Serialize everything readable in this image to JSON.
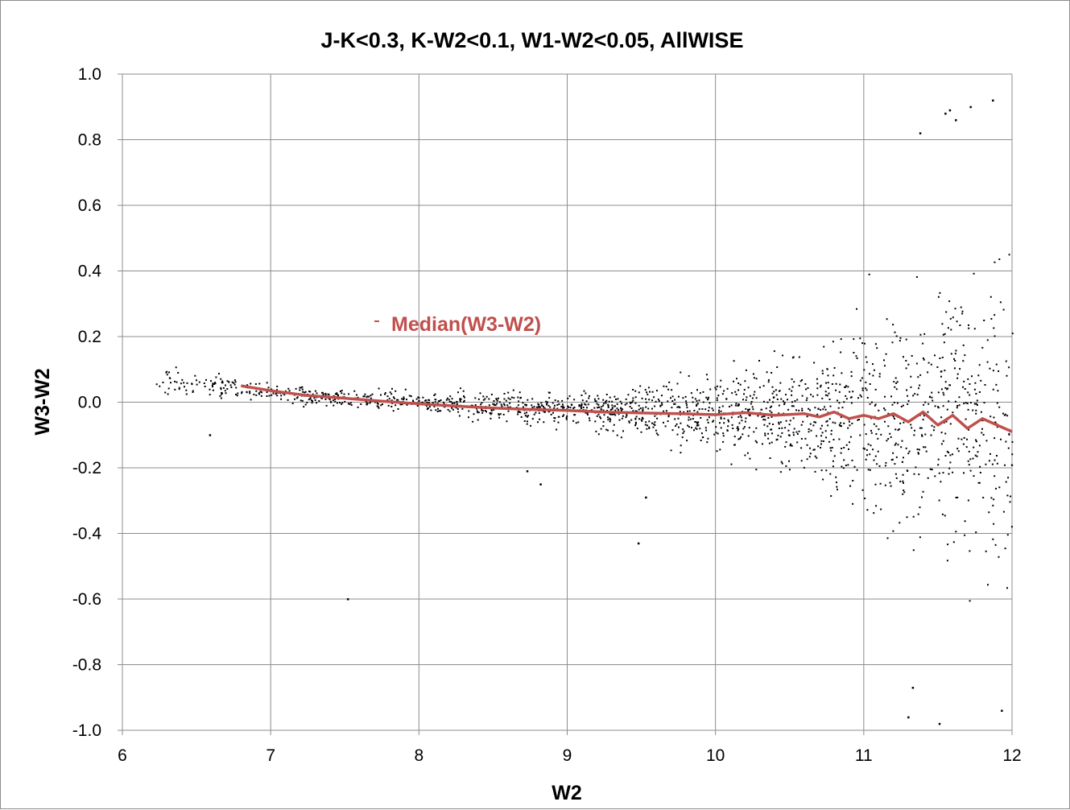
{
  "chart_data": {
    "type": "scatter",
    "title": "J-K<0.3, K-W2<0.1, W1-W2<0.05, AllWISE",
    "xlabel": "W2",
    "ylabel": "W3-W2",
    "xlim": [
      6,
      12
    ],
    "ylim": [
      -1.0,
      1.0
    ],
    "x_ticks": [
      "6",
      "7",
      "8",
      "9",
      "10",
      "11",
      "12"
    ],
    "y_ticks": [
      "1.0",
      "0.8",
      "0.6",
      "0.4",
      "0.2",
      "0.0",
      "-0.2",
      "-0.4",
      "-0.6",
      "-0.8",
      "-1.0"
    ],
    "grid": true,
    "legend_position": "upper-left inside plot",
    "series": [
      {
        "name": "",
        "kind": "scatter",
        "color": "#000000",
        "marker": "small dots",
        "spread_profile": [
          {
            "x": 6.25,
            "median": 0.07,
            "half_spread": 0.05
          },
          {
            "x": 7.0,
            "median": 0.03,
            "half_spread": 0.03
          },
          {
            "x": 8.0,
            "median": 0.0,
            "half_spread": 0.04
          },
          {
            "x": 9.0,
            "median": -0.02,
            "half_spread": 0.06
          },
          {
            "x": 10.0,
            "median": -0.03,
            "half_spread": 0.14
          },
          {
            "x": 10.5,
            "median": -0.03,
            "half_spread": 0.22
          },
          {
            "x": 11.0,
            "median": -0.03,
            "half_spread": 0.33
          },
          {
            "x": 11.5,
            "median": -0.04,
            "half_spread": 0.45
          },
          {
            "x": 12.0,
            "median": -0.06,
            "half_spread": 0.55
          }
        ],
        "outliers": [
          {
            "x": 7.52,
            "y": -0.6
          },
          {
            "x": 9.48,
            "y": -0.43
          },
          {
            "x": 9.53,
            "y": -0.29
          },
          {
            "x": 8.82,
            "y": -0.25
          },
          {
            "x": 8.73,
            "y": -0.21
          },
          {
            "x": 6.59,
            "y": -0.1
          },
          {
            "x": 11.87,
            "y": 0.92
          },
          {
            "x": 11.72,
            "y": 0.9
          },
          {
            "x": 11.55,
            "y": 0.88
          },
          {
            "x": 11.58,
            "y": 0.89
          },
          {
            "x": 11.62,
            "y": 0.86
          },
          {
            "x": 11.38,
            "y": 0.82
          },
          {
            "x": 11.51,
            "y": -0.98
          },
          {
            "x": 11.3,
            "y": -0.96
          },
          {
            "x": 11.93,
            "y": -0.94
          },
          {
            "x": 11.33,
            "y": -0.87
          }
        ]
      },
      {
        "name": "Median(W3-W2)",
        "kind": "line",
        "color": "#c0504d",
        "x": [
          6.8,
          7.0,
          7.25,
          7.5,
          7.75,
          8.0,
          8.25,
          8.5,
          8.75,
          9.0,
          9.25,
          9.5,
          9.75,
          10.0,
          10.2,
          10.4,
          10.6,
          10.7,
          10.8,
          10.9,
          11.0,
          11.1,
          11.2,
          11.3,
          11.4,
          11.5,
          11.6,
          11.7,
          11.8,
          11.9,
          12.0
        ],
        "y": [
          0.05,
          0.035,
          0.02,
          0.012,
          0.003,
          -0.005,
          -0.012,
          -0.018,
          -0.022,
          -0.025,
          -0.03,
          -0.033,
          -0.035,
          -0.038,
          -0.032,
          -0.04,
          -0.035,
          -0.045,
          -0.03,
          -0.05,
          -0.04,
          -0.05,
          -0.035,
          -0.06,
          -0.03,
          -0.07,
          -0.04,
          -0.08,
          -0.05,
          -0.07,
          -0.09
        ]
      }
    ]
  }
}
